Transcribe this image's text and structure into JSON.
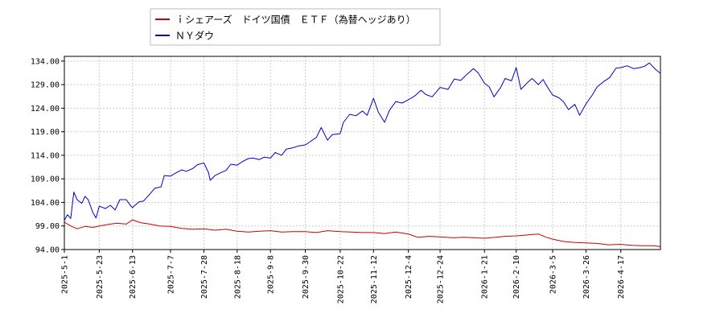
{
  "chart_data": {
    "type": "line",
    "legend_position": "top-left",
    "grid": true,
    "ylim": [
      94.0,
      135.0
    ],
    "xlim": [
      "2025-05-01",
      "2026-05-12"
    ],
    "yticks": [
      "94.00",
      "99.00",
      "104.00",
      "109.00",
      "114.00",
      "119.00",
      "124.00",
      "129.00",
      "134.00"
    ],
    "xticks": [
      {
        "label": "2025-5-1",
        "date": "2025-05-01"
      },
      {
        "label": "2025-5-23",
        "date": "2025-05-23"
      },
      {
        "label": "2025-6-13",
        "date": "2025-06-13"
      },
      {
        "label": "2025-7-7",
        "date": "2025-07-07"
      },
      {
        "label": "2025-7-28",
        "date": "2025-07-28"
      },
      {
        "label": "2025-8-18",
        "date": "2025-08-18"
      },
      {
        "label": "2025-9-8",
        "date": "2025-09-08"
      },
      {
        "label": "2025-9-30",
        "date": "2025-09-30"
      },
      {
        "label": "2025-10-22",
        "date": "2025-10-22"
      },
      {
        "label": "2025-11-12",
        "date": "2025-11-12"
      },
      {
        "label": "2025-12-4",
        "date": "2025-12-04"
      },
      {
        "label": "2025-12-24",
        "date": "2025-12-24"
      },
      {
        "label": "2026-1-21",
        "date": "2026-01-21"
      },
      {
        "label": "2026-2-10",
        "date": "2026-02-10"
      },
      {
        "label": "2026-3-5",
        "date": "2026-03-05"
      },
      {
        "label": "2026-3-26",
        "date": "2026-03-26"
      },
      {
        "label": "2026-4-17",
        "date": "2026-04-17"
      }
    ],
    "series": [
      {
        "name": "ｉシェアーズ　ドイツ国債　ＥＴＦ（為替ヘッジあり）",
        "color": "#cc0000",
        "points": [
          [
            "2025-05-01",
            99.8
          ],
          [
            "2025-05-05",
            99.0
          ],
          [
            "2025-05-09",
            98.4
          ],
          [
            "2025-05-14",
            98.9
          ],
          [
            "2025-05-19",
            98.7
          ],
          [
            "2025-05-23",
            99.0
          ],
          [
            "2025-05-28",
            99.3
          ],
          [
            "2025-06-03",
            99.6
          ],
          [
            "2025-06-09",
            99.4
          ],
          [
            "2025-06-13",
            100.3
          ],
          [
            "2025-06-18",
            99.7
          ],
          [
            "2025-06-24",
            99.4
          ],
          [
            "2025-06-30",
            99.0
          ],
          [
            "2025-07-07",
            98.9
          ],
          [
            "2025-07-14",
            98.5
          ],
          [
            "2025-07-21",
            98.3
          ],
          [
            "2025-07-28",
            98.4
          ],
          [
            "2025-08-04",
            98.1
          ],
          [
            "2025-08-11",
            98.3
          ],
          [
            "2025-08-18",
            97.9
          ],
          [
            "2025-08-25",
            97.7
          ],
          [
            "2025-09-01",
            97.9
          ],
          [
            "2025-09-08",
            98.0
          ],
          [
            "2025-09-15",
            97.7
          ],
          [
            "2025-09-22",
            97.8
          ],
          [
            "2025-09-30",
            97.8
          ],
          [
            "2025-10-07",
            97.6
          ],
          [
            "2025-10-14",
            98.0
          ],
          [
            "2025-10-22",
            97.8
          ],
          [
            "2025-10-29",
            97.7
          ],
          [
            "2025-11-05",
            97.6
          ],
          [
            "2025-11-12",
            97.6
          ],
          [
            "2025-11-19",
            97.4
          ],
          [
            "2025-11-26",
            97.7
          ],
          [
            "2025-12-04",
            97.3
          ],
          [
            "2025-12-10",
            96.6
          ],
          [
            "2025-12-17",
            96.8
          ],
          [
            "2025-12-24",
            96.7
          ],
          [
            "2026-01-01",
            96.5
          ],
          [
            "2026-01-08",
            96.6
          ],
          [
            "2026-01-14",
            96.5
          ],
          [
            "2026-01-21",
            96.4
          ],
          [
            "2026-01-28",
            96.6
          ],
          [
            "2026-02-03",
            96.8
          ],
          [
            "2026-02-10",
            96.9
          ],
          [
            "2026-02-17",
            97.1
          ],
          [
            "2026-02-24",
            97.3
          ],
          [
            "2026-03-01",
            96.6
          ],
          [
            "2026-03-05",
            96.2
          ],
          [
            "2026-03-12",
            95.7
          ],
          [
            "2026-03-19",
            95.5
          ],
          [
            "2026-03-26",
            95.4
          ],
          [
            "2026-04-02",
            95.3
          ],
          [
            "2026-04-09",
            95.0
          ],
          [
            "2026-04-17",
            95.1
          ],
          [
            "2026-04-24",
            94.9
          ],
          [
            "2026-05-01",
            94.8
          ],
          [
            "2026-05-08",
            94.8
          ],
          [
            "2026-05-12",
            94.6
          ]
        ]
      },
      {
        "name": "ＮＹダウ",
        "color": "#0000cc",
        "points": [
          [
            "2025-05-01",
            100.2
          ],
          [
            "2025-05-03",
            101.4
          ],
          [
            "2025-05-05",
            100.6
          ],
          [
            "2025-05-07",
            106.2
          ],
          [
            "2025-05-09",
            104.6
          ],
          [
            "2025-05-12",
            103.8
          ],
          [
            "2025-05-14",
            105.3
          ],
          [
            "2025-05-16",
            104.6
          ],
          [
            "2025-05-19",
            101.8
          ],
          [
            "2025-05-21",
            100.7
          ],
          [
            "2025-05-23",
            103.2
          ],
          [
            "2025-05-27",
            102.7
          ],
          [
            "2025-05-30",
            103.4
          ],
          [
            "2025-06-02",
            102.4
          ],
          [
            "2025-06-05",
            104.6
          ],
          [
            "2025-06-09",
            104.6
          ],
          [
            "2025-06-12",
            103.2
          ],
          [
            "2025-06-13",
            102.9
          ],
          [
            "2025-06-17",
            104.1
          ],
          [
            "2025-06-20",
            104.3
          ],
          [
            "2025-06-24",
            105.8
          ],
          [
            "2025-06-27",
            107.0
          ],
          [
            "2025-07-01",
            107.3
          ],
          [
            "2025-07-03",
            109.7
          ],
          [
            "2025-07-07",
            109.6
          ],
          [
            "2025-07-10",
            110.2
          ],
          [
            "2025-07-14",
            110.9
          ],
          [
            "2025-07-17",
            110.6
          ],
          [
            "2025-07-21",
            111.2
          ],
          [
            "2025-07-24",
            112.0
          ],
          [
            "2025-07-28",
            112.4
          ],
          [
            "2025-07-31",
            110.3
          ],
          [
            "2025-08-01",
            108.7
          ],
          [
            "2025-08-04",
            109.7
          ],
          [
            "2025-08-07",
            110.2
          ],
          [
            "2025-08-11",
            110.8
          ],
          [
            "2025-08-14",
            112.1
          ],
          [
            "2025-08-18",
            111.9
          ],
          [
            "2025-08-21",
            112.6
          ],
          [
            "2025-08-25",
            113.3
          ],
          [
            "2025-08-28",
            113.4
          ],
          [
            "2025-09-01",
            113.1
          ],
          [
            "2025-09-04",
            113.6
          ],
          [
            "2025-09-08",
            113.4
          ],
          [
            "2025-09-11",
            114.6
          ],
          [
            "2025-09-15",
            114.0
          ],
          [
            "2025-09-18",
            115.3
          ],
          [
            "2025-09-22",
            115.6
          ],
          [
            "2025-09-26",
            116.0
          ],
          [
            "2025-09-30",
            116.2
          ],
          [
            "2025-10-03",
            116.9
          ],
          [
            "2025-10-07",
            117.8
          ],
          [
            "2025-10-10",
            119.9
          ],
          [
            "2025-10-14",
            117.2
          ],
          [
            "2025-10-17",
            118.4
          ],
          [
            "2025-10-22",
            118.6
          ],
          [
            "2025-10-24",
            121.0
          ],
          [
            "2025-10-28",
            122.7
          ],
          [
            "2025-11-01",
            122.4
          ],
          [
            "2025-11-05",
            123.4
          ],
          [
            "2025-11-08",
            122.5
          ],
          [
            "2025-11-12",
            126.1
          ],
          [
            "2025-11-15",
            123.2
          ],
          [
            "2025-11-19",
            121.0
          ],
          [
            "2025-11-22",
            123.5
          ],
          [
            "2025-11-26",
            125.4
          ],
          [
            "2025-11-30",
            125.1
          ],
          [
            "2025-12-04",
            125.8
          ],
          [
            "2025-12-08",
            126.6
          ],
          [
            "2025-12-12",
            127.8
          ],
          [
            "2025-12-15",
            126.9
          ],
          [
            "2025-12-19",
            126.4
          ],
          [
            "2025-12-24",
            128.4
          ],
          [
            "2025-12-29",
            128.0
          ],
          [
            "2026-01-02",
            130.2
          ],
          [
            "2026-01-06",
            129.9
          ],
          [
            "2026-01-10",
            131.2
          ],
          [
            "2026-01-14",
            132.4
          ],
          [
            "2026-01-17",
            131.5
          ],
          [
            "2026-01-21",
            129.3
          ],
          [
            "2026-01-24",
            128.5
          ],
          [
            "2026-01-27",
            126.4
          ],
          [
            "2026-01-31",
            128.3
          ],
          [
            "2026-02-03",
            130.3
          ],
          [
            "2026-02-07",
            129.8
          ],
          [
            "2026-02-10",
            132.6
          ],
          [
            "2026-02-13",
            128.0
          ],
          [
            "2026-02-17",
            129.4
          ],
          [
            "2026-02-20",
            130.3
          ],
          [
            "2026-02-24",
            129.0
          ],
          [
            "2026-02-27",
            130.1
          ],
          [
            "2026-03-02",
            128.3
          ],
          [
            "2026-03-05",
            126.8
          ],
          [
            "2026-03-09",
            126.2
          ],
          [
            "2026-03-12",
            125.3
          ],
          [
            "2026-03-15",
            123.7
          ],
          [
            "2026-03-19",
            124.8
          ],
          [
            "2026-03-22",
            122.5
          ],
          [
            "2026-03-26",
            124.9
          ],
          [
            "2026-03-30",
            126.8
          ],
          [
            "2026-04-02",
            128.5
          ],
          [
            "2026-04-06",
            129.6
          ],
          [
            "2026-04-10",
            130.5
          ],
          [
            "2026-04-14",
            132.5
          ],
          [
            "2026-04-17",
            132.6
          ],
          [
            "2026-04-21",
            133.0
          ],
          [
            "2026-04-25",
            132.4
          ],
          [
            "2026-04-29",
            132.6
          ],
          [
            "2026-05-02",
            132.9
          ],
          [
            "2026-05-05",
            133.6
          ],
          [
            "2026-05-09",
            132.2
          ],
          [
            "2026-05-12",
            131.4
          ]
        ]
      }
    ]
  }
}
